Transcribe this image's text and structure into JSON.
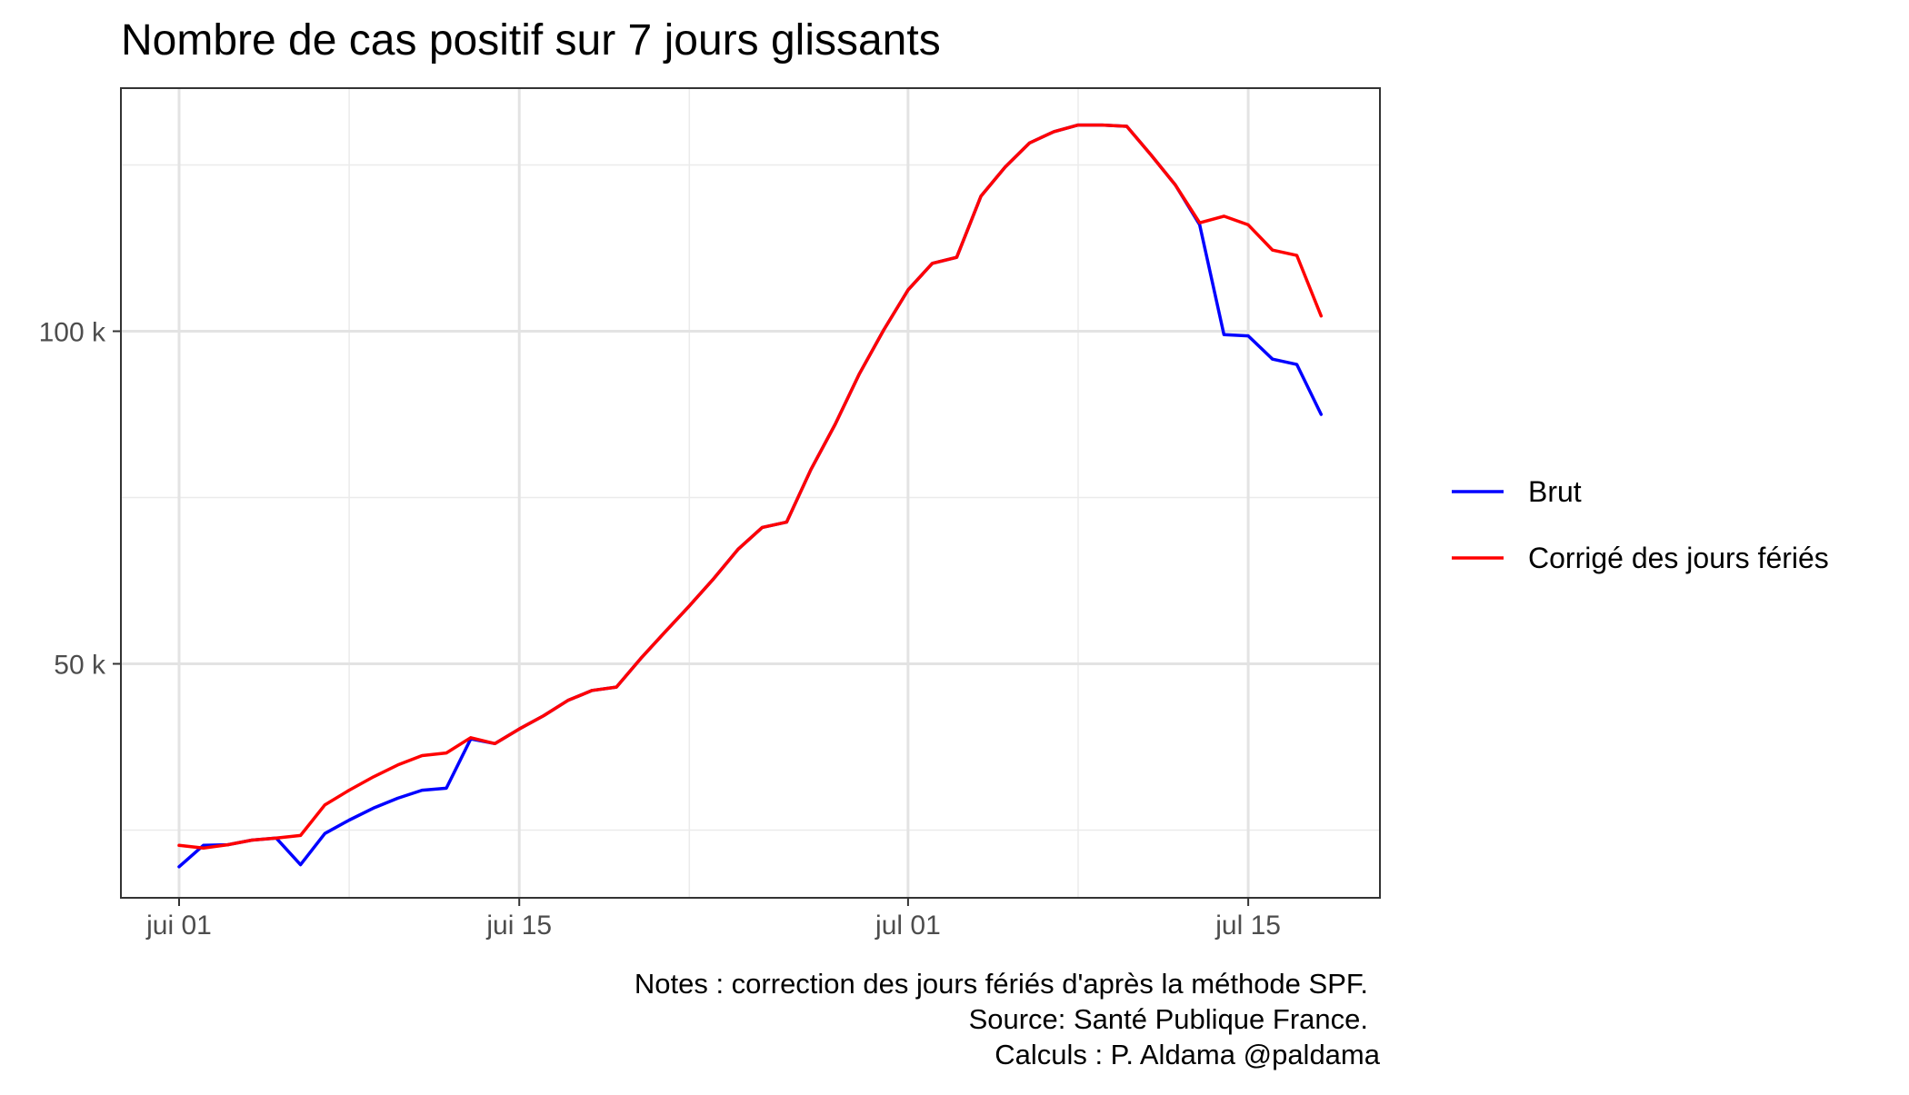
{
  "chart_data": {
    "type": "line",
    "title": "Nombre de cas positif sur 7 jours glissants",
    "xlabel": "",
    "ylabel": "",
    "x_start": "2021-06-01",
    "ylim": [
      14000,
      131000
    ],
    "y_ticks": [
      {
        "value": 50000,
        "label": "50 k"
      },
      {
        "value": 100000,
        "label": "100 k"
      }
    ],
    "y_minor_ticks": [
      25000,
      75000,
      125000
    ],
    "x_ticks": [
      {
        "date": "2021-06-01",
        "label": "jui 01"
      },
      {
        "date": "2021-06-15",
        "label": "jui 15"
      },
      {
        "date": "2021-07-01",
        "label": "jul 01"
      },
      {
        "date": "2021-07-15",
        "label": "jul 15"
      }
    ],
    "x_minor_ticks": [
      "2021-06-08",
      "2021-06-22",
      "2021-07-08"
    ],
    "grid": true,
    "legend_position": "right",
    "series": [
      {
        "name": "Brut",
        "color": "#0000ff",
        "points": [
          [
            "2021-06-01",
            19500
          ],
          [
            "2021-06-02",
            22700
          ],
          [
            "2021-06-03",
            22800
          ],
          [
            "2021-06-04",
            23500
          ],
          [
            "2021-06-05",
            23800
          ],
          [
            "2021-06-06",
            19800
          ],
          [
            "2021-06-07",
            24500
          ],
          [
            "2021-06-08",
            26500
          ],
          [
            "2021-06-09",
            28300
          ],
          [
            "2021-06-10",
            29800
          ],
          [
            "2021-06-11",
            31000
          ],
          [
            "2021-06-12",
            31300
          ],
          [
            "2021-06-13",
            38700
          ],
          [
            "2021-06-14",
            38000
          ],
          [
            "2021-06-15",
            40200
          ],
          [
            "2021-06-16",
            42200
          ],
          [
            "2021-06-17",
            44500
          ],
          [
            "2021-06-18",
            46000
          ],
          [
            "2021-06-19",
            46500
          ],
          [
            "2021-06-20",
            50800
          ],
          [
            "2021-06-21",
            54800
          ],
          [
            "2021-06-22",
            58700
          ],
          [
            "2021-06-23",
            62800
          ],
          [
            "2021-06-24",
            67200
          ],
          [
            "2021-06-25",
            70500
          ],
          [
            "2021-06-26",
            71300
          ],
          [
            "2021-06-27",
            79200
          ],
          [
            "2021-06-28",
            86000
          ],
          [
            "2021-06-29",
            93600
          ],
          [
            "2021-06-30",
            100200
          ],
          [
            "2021-07-01",
            106200
          ],
          [
            "2021-07-02",
            110200
          ],
          [
            "2021-07-03",
            111100
          ],
          [
            "2021-07-04",
            120300
          ],
          [
            "2021-07-05",
            124700
          ],
          [
            "2021-07-06",
            128300
          ],
          [
            "2021-07-07",
            130000
          ],
          [
            "2021-07-08",
            131000
          ],
          [
            "2021-07-09",
            131000
          ],
          [
            "2021-07-10",
            130800
          ],
          [
            "2021-07-11",
            126500
          ],
          [
            "2021-07-12",
            122000
          ],
          [
            "2021-07-13",
            116000
          ],
          [
            "2021-07-14",
            99500
          ],
          [
            "2021-07-15",
            99300
          ],
          [
            "2021-07-16",
            95800
          ],
          [
            "2021-07-17",
            95000
          ],
          [
            "2021-07-18",
            87500
          ]
        ]
      },
      {
        "name": "Corrigé des jours fériés",
        "color": "#ff0000",
        "points": [
          [
            "2021-06-01",
            22700
          ],
          [
            "2021-06-02",
            22300
          ],
          [
            "2021-06-03",
            22800
          ],
          [
            "2021-06-04",
            23500
          ],
          [
            "2021-06-05",
            23800
          ],
          [
            "2021-06-06",
            24200
          ],
          [
            "2021-06-07",
            28800
          ],
          [
            "2021-06-08",
            31000
          ],
          [
            "2021-06-09",
            33000
          ],
          [
            "2021-06-10",
            34800
          ],
          [
            "2021-06-11",
            36200
          ],
          [
            "2021-06-12",
            36600
          ],
          [
            "2021-06-13",
            38900
          ],
          [
            "2021-06-14",
            38000
          ],
          [
            "2021-06-15",
            40200
          ],
          [
            "2021-06-16",
            42200
          ],
          [
            "2021-06-17",
            44500
          ],
          [
            "2021-06-18",
            46000
          ],
          [
            "2021-06-19",
            46500
          ],
          [
            "2021-06-20",
            50800
          ],
          [
            "2021-06-21",
            54800
          ],
          [
            "2021-06-22",
            58700
          ],
          [
            "2021-06-23",
            62800
          ],
          [
            "2021-06-24",
            67200
          ],
          [
            "2021-06-25",
            70500
          ],
          [
            "2021-06-26",
            71300
          ],
          [
            "2021-06-27",
            79200
          ],
          [
            "2021-06-28",
            86000
          ],
          [
            "2021-06-29",
            93600
          ],
          [
            "2021-06-30",
            100200
          ],
          [
            "2021-07-01",
            106200
          ],
          [
            "2021-07-02",
            110200
          ],
          [
            "2021-07-03",
            111100
          ],
          [
            "2021-07-04",
            120300
          ],
          [
            "2021-07-05",
            124700
          ],
          [
            "2021-07-06",
            128300
          ],
          [
            "2021-07-07",
            130000
          ],
          [
            "2021-07-08",
            131000
          ],
          [
            "2021-07-09",
            131000
          ],
          [
            "2021-07-10",
            130800
          ],
          [
            "2021-07-11",
            126500
          ],
          [
            "2021-07-12",
            122000
          ],
          [
            "2021-07-13",
            116300
          ],
          [
            "2021-07-14",
            117300
          ],
          [
            "2021-07-15",
            116000
          ],
          [
            "2021-07-16",
            112200
          ],
          [
            "2021-07-17",
            111400
          ],
          [
            "2021-07-18",
            102300
          ]
        ]
      }
    ],
    "notes": [
      "Notes : correction des jours fériés d'après la méthode SPF.",
      "Source: Santé Publique France.",
      "Calculs : P. Aldama @paldama"
    ]
  }
}
